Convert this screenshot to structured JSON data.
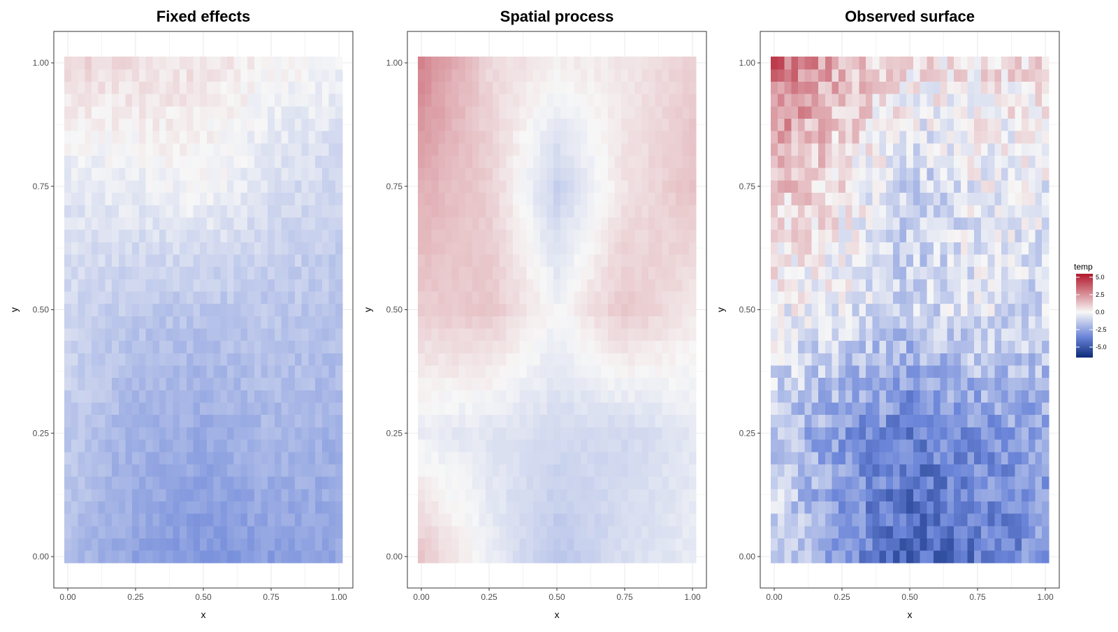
{
  "chart_data": [
    {
      "type": "heatmap",
      "title": "Fixed effects",
      "xlabel": "x",
      "ylabel": "y",
      "xlim": [
        0,
        1
      ],
      "ylim": [
        0,
        1
      ],
      "x_ticks": [
        "0.00",
        "0.25",
        "0.50",
        "0.75",
        "1.00"
      ],
      "y_ticks": [
        "0.00",
        "0.25",
        "0.50",
        "0.75",
        "1.00"
      ],
      "grid": true,
      "grid_cells": [
        41,
        41
      ],
      "rows_y": [
        0.0,
        0.25,
        0.5,
        0.75,
        1.0
      ],
      "cols_x": [
        0.0,
        0.25,
        0.5,
        0.75,
        1.0
      ],
      "z": [
        [
          -1.8,
          -2.6,
          -3.0,
          -2.8,
          -2.6
        ],
        [
          -1.4,
          -2.2,
          -2.4,
          -2.0,
          -2.2
        ],
        [
          -1.0,
          -1.5,
          -1.6,
          -1.5,
          -1.6
        ],
        [
          -0.5,
          -0.3,
          0.0,
          -0.7,
          -1.1
        ],
        [
          0.8,
          0.7,
          0.5,
          0.1,
          -0.1
        ]
      ]
    },
    {
      "type": "heatmap",
      "title": "Spatial process",
      "xlabel": "x",
      "ylabel": "y",
      "xlim": [
        0,
        1
      ],
      "ylim": [
        0,
        1
      ],
      "x_ticks": [
        "0.00",
        "0.25",
        "0.50",
        "0.75",
        "1.00"
      ],
      "y_ticks": [
        "0.00",
        "0.25",
        "0.50",
        "0.75",
        "1.00"
      ],
      "grid": true,
      "grid_cells": [
        41,
        41
      ],
      "rows_y": [
        0.0,
        0.25,
        0.5,
        0.75,
        1.0
      ],
      "cols_x": [
        0.0,
        0.25,
        0.5,
        0.75,
        1.0
      ],
      "z": [
        [
          1.2,
          -0.3,
          -1.6,
          -0.8,
          -0.4
        ],
        [
          -0.3,
          -0.6,
          -0.9,
          -1.0,
          -0.5
        ],
        [
          1.0,
          1.2,
          -0.1,
          1.2,
          0.4
        ],
        [
          1.8,
          1.0,
          -1.2,
          0.5,
          1.3
        ],
        [
          2.8,
          0.8,
          0.2,
          0.4,
          1.0
        ]
      ]
    },
    {
      "type": "heatmap",
      "title": "Observed surface",
      "xlabel": "x",
      "ylabel": "y",
      "xlim": [
        0,
        1
      ],
      "ylim": [
        0,
        1
      ],
      "x_ticks": [
        "0.00",
        "0.25",
        "0.50",
        "0.75",
        "1.00"
      ],
      "y_ticks": [
        "0.00",
        "0.25",
        "0.50",
        "0.75",
        "1.00"
      ],
      "grid": true,
      "grid_cells": [
        41,
        41
      ],
      "rows_y": [
        0.0,
        0.25,
        0.5,
        0.75,
        1.0
      ],
      "cols_x": [
        0.0,
        0.25,
        0.5,
        0.75,
        1.0
      ],
      "z": [
        [
          -0.6,
          -3.0,
          -4.6,
          -4.0,
          -3.0
        ],
        [
          -1.5,
          -2.8,
          -3.8,
          -3.0,
          -2.6
        ],
        [
          -0.2,
          -0.5,
          -1.2,
          -0.6,
          -1.0
        ],
        [
          1.2,
          0.5,
          -1.4,
          -0.3,
          -0.5
        ],
        [
          3.6,
          1.6,
          0.6,
          0.4,
          0.8
        ]
      ],
      "noise_amplitude": 1.1
    }
  ],
  "legend": {
    "title": "temp",
    "ticks": [
      "5.0",
      "2.5",
      "0.0",
      "-2.5",
      "-5.0"
    ],
    "tick_values": [
      5.0,
      2.5,
      0.0,
      -2.5,
      -5.0
    ],
    "range": [
      -6.5,
      5.5
    ],
    "placement": "right",
    "colors": {
      "high": "#B2182B",
      "mid": "#F7F7F7",
      "low": "#0B2A7A",
      "mid_low": "#6C86D9"
    }
  },
  "colors": {
    "panel_border": "#333333",
    "grid": "#EBEBEB",
    "background": "#FFFFFF"
  }
}
